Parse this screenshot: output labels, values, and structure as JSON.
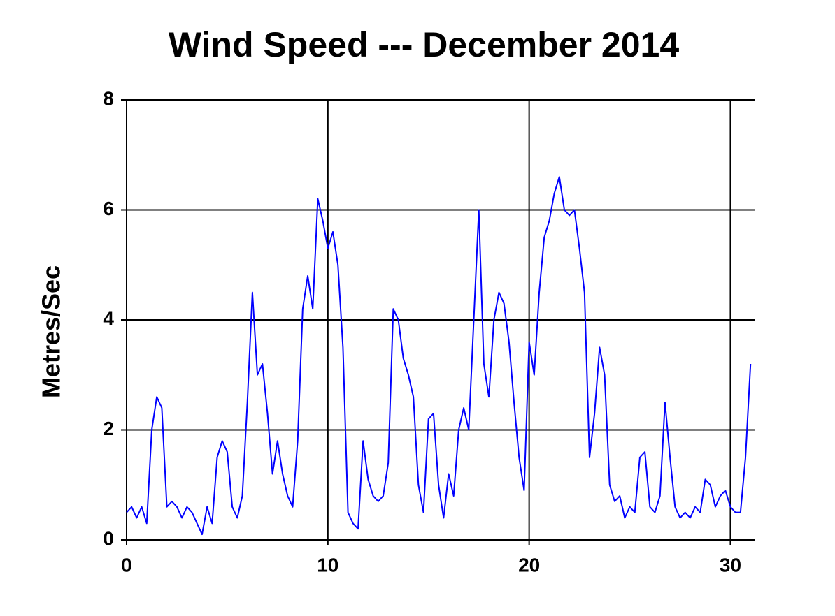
{
  "chart_data": {
    "type": "line",
    "title": "Wind Speed --- December 2014",
    "y_label": "Metres/Sec",
    "x": [
      0,
      0.25,
      0.5,
      0.75,
      1,
      1.25,
      1.5,
      1.75,
      2,
      2.25,
      2.5,
      2.75,
      3,
      3.25,
      3.5,
      3.75,
      4,
      4.25,
      4.5,
      4.75,
      5,
      5.25,
      5.5,
      5.75,
      6,
      6.25,
      6.5,
      6.75,
      7,
      7.25,
      7.5,
      7.75,
      8,
      8.25,
      8.5,
      8.75,
      9,
      9.25,
      9.5,
      9.75,
      10,
      10.25,
      10.5,
      10.75,
      11,
      11.25,
      11.5,
      11.75,
      12,
      12.25,
      12.5,
      12.75,
      13,
      13.25,
      13.5,
      13.75,
      14,
      14.25,
      14.5,
      14.75,
      15,
      15.25,
      15.5,
      15.75,
      16,
      16.25,
      16.5,
      16.75,
      17,
      17.25,
      17.5,
      17.75,
      18,
      18.25,
      18.5,
      18.75,
      19,
      19.25,
      19.5,
      19.75,
      20,
      20.25,
      20.5,
      20.75,
      21,
      21.25,
      21.5,
      21.75,
      22,
      22.25,
      22.5,
      22.75,
      23,
      23.25,
      23.5,
      23.75,
      24,
      24.25,
      24.5,
      24.75,
      25,
      25.25,
      25.5,
      25.75,
      26,
      26.25,
      26.5,
      26.75,
      27,
      27.25,
      27.5,
      27.75,
      28,
      28.25,
      28.5,
      28.75,
      29,
      29.25,
      29.5,
      29.75,
      30,
      30.25,
      30.5,
      30.75,
      31
    ],
    "series": [
      {
        "name": "Wind Speed",
        "color": "#0000ff",
        "values": [
          0.5,
          0.6,
          0.4,
          0.6,
          0.3,
          2.0,
          2.6,
          2.4,
          0.6,
          0.7,
          0.6,
          0.4,
          0.6,
          0.5,
          0.3,
          0.1,
          0.6,
          0.3,
          1.5,
          1.8,
          1.6,
          0.6,
          0.4,
          0.8,
          2.5,
          4.5,
          3.0,
          3.2,
          2.3,
          1.2,
          1.8,
          1.2,
          0.8,
          0.6,
          1.8,
          4.2,
          4.8,
          4.2,
          6.2,
          5.8,
          5.3,
          5.6,
          5.0,
          3.5,
          0.5,
          0.3,
          0.2,
          1.8,
          1.1,
          0.8,
          0.7,
          0.8,
          1.4,
          4.2,
          4.0,
          3.3,
          3.0,
          2.6,
          1.0,
          0.5,
          2.2,
          2.3,
          1.0,
          0.4,
          1.2,
          0.8,
          2.0,
          2.4,
          2.0,
          4.0,
          6.0,
          3.2,
          2.6,
          4.0,
          4.5,
          4.3,
          3.6,
          2.5,
          1.5,
          0.9,
          3.6,
          3.0,
          4.5,
          5.5,
          5.8,
          6.3,
          6.6,
          6.0,
          5.9,
          6.0,
          5.3,
          4.5,
          1.5,
          2.3,
          3.5,
          3.0,
          1.0,
          0.7,
          0.8,
          0.4,
          0.6,
          0.5,
          1.5,
          1.6,
          0.6,
          0.5,
          0.8,
          2.5,
          1.5,
          0.6,
          0.4,
          0.5,
          0.4,
          0.6,
          0.5,
          1.1,
          1.0,
          0.6,
          0.8,
          0.9,
          0.6,
          0.5,
          0.5,
          1.5,
          3.2
        ]
      }
    ],
    "xlim": [
      0,
      31.2
    ],
    "xticks": [
      0,
      10,
      20,
      30
    ],
    "ylim": [
      0,
      8
    ],
    "yticks": [
      0,
      2,
      4,
      6,
      8
    ],
    "grid": true
  }
}
